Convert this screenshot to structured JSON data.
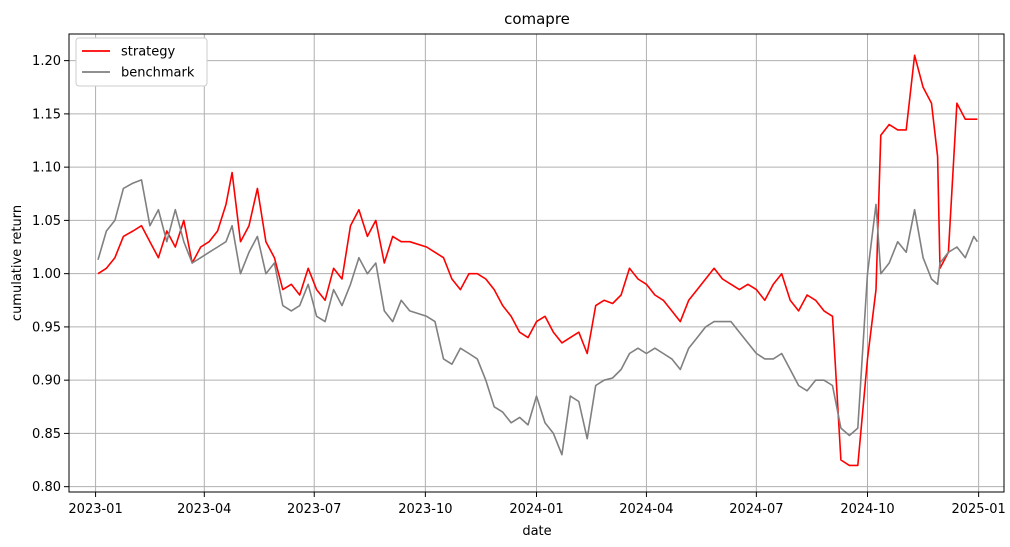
{
  "chart_data": {
    "type": "line",
    "title": "comapre",
    "xlabel": "date",
    "ylabel": "cumulative return",
    "xlim": [
      "2022-12-10",
      "2025-01-22"
    ],
    "ylim": [
      0.795,
      1.225
    ],
    "x_ticks": [
      "2023-01",
      "2023-04",
      "2023-07",
      "2023-10",
      "2024-01",
      "2024-04",
      "2024-07",
      "2024-10",
      "2025-01"
    ],
    "y_ticks": [
      "0.80",
      "0.85",
      "0.90",
      "0.95",
      "1.00",
      "1.05",
      "1.10",
      "1.15",
      "1.20"
    ],
    "grid": true,
    "legend": "top-left",
    "series": [
      {
        "name": "strategy",
        "color": "#ff0000",
        "points": [
          [
            "2023-01-03",
            1.0
          ],
          [
            "2023-01-10",
            1.005
          ],
          [
            "2023-01-17",
            1.015
          ],
          [
            "2023-01-24",
            1.035
          ],
          [
            "2023-02-01",
            1.04
          ],
          [
            "2023-02-08",
            1.045
          ],
          [
            "2023-02-15",
            1.03
          ],
          [
            "2023-02-22",
            1.015
          ],
          [
            "2023-03-01",
            1.04
          ],
          [
            "2023-03-08",
            1.025
          ],
          [
            "2023-03-15",
            1.05
          ],
          [
            "2023-03-22",
            1.01
          ],
          [
            "2023-03-29",
            1.025
          ],
          [
            "2023-04-05",
            1.03
          ],
          [
            "2023-04-12",
            1.04
          ],
          [
            "2023-04-19",
            1.065
          ],
          [
            "2023-04-24",
            1.095
          ],
          [
            "2023-05-01",
            1.03
          ],
          [
            "2023-05-08",
            1.045
          ],
          [
            "2023-05-15",
            1.08
          ],
          [
            "2023-05-22",
            1.03
          ],
          [
            "2023-05-29",
            1.015
          ],
          [
            "2023-06-05",
            0.985
          ],
          [
            "2023-06-12",
            0.99
          ],
          [
            "2023-06-19",
            0.98
          ],
          [
            "2023-06-26",
            1.005
          ],
          [
            "2023-07-03",
            0.985
          ],
          [
            "2023-07-10",
            0.975
          ],
          [
            "2023-07-17",
            1.005
          ],
          [
            "2023-07-24",
            0.995
          ],
          [
            "2023-07-31",
            1.045
          ],
          [
            "2023-08-07",
            1.06
          ],
          [
            "2023-08-14",
            1.035
          ],
          [
            "2023-08-21",
            1.05
          ],
          [
            "2023-08-28",
            1.01
          ],
          [
            "2023-09-04",
            1.035
          ],
          [
            "2023-09-11",
            1.03
          ],
          [
            "2023-09-18",
            1.03
          ],
          [
            "2023-10-02",
            1.025
          ],
          [
            "2023-10-09",
            1.02
          ],
          [
            "2023-10-16",
            1.015
          ],
          [
            "2023-10-23",
            0.995
          ],
          [
            "2023-10-30",
            0.985
          ],
          [
            "2023-11-06",
            1.0
          ],
          [
            "2023-11-13",
            1.0
          ],
          [
            "2023-11-20",
            0.995
          ],
          [
            "2023-11-27",
            0.985
          ],
          [
            "2023-12-04",
            0.97
          ],
          [
            "2023-12-11",
            0.96
          ],
          [
            "2023-12-18",
            0.945
          ],
          [
            "2023-12-25",
            0.94
          ],
          [
            "2024-01-01",
            0.955
          ],
          [
            "2024-01-08",
            0.96
          ],
          [
            "2024-01-15",
            0.945
          ],
          [
            "2024-01-22",
            0.935
          ],
          [
            "2024-01-29",
            0.94
          ],
          [
            "2024-02-05",
            0.945
          ],
          [
            "2024-02-12",
            0.925
          ],
          [
            "2024-02-19",
            0.97
          ],
          [
            "2024-02-26",
            0.975
          ],
          [
            "2024-03-04",
            0.972
          ],
          [
            "2024-03-11",
            0.98
          ],
          [
            "2024-03-18",
            1.005
          ],
          [
            "2024-03-25",
            0.995
          ],
          [
            "2024-04-01",
            0.99
          ],
          [
            "2024-04-08",
            0.98
          ],
          [
            "2024-04-15",
            0.975
          ],
          [
            "2024-04-22",
            0.965
          ],
          [
            "2024-04-29",
            0.955
          ],
          [
            "2024-05-06",
            0.975
          ],
          [
            "2024-05-13",
            0.985
          ],
          [
            "2024-05-20",
            0.995
          ],
          [
            "2024-05-27",
            1.005
          ],
          [
            "2024-06-03",
            0.995
          ],
          [
            "2024-06-10",
            0.99
          ],
          [
            "2024-06-17",
            0.985
          ],
          [
            "2024-06-24",
            0.99
          ],
          [
            "2024-07-01",
            0.985
          ],
          [
            "2024-07-08",
            0.975
          ],
          [
            "2024-07-15",
            0.99
          ],
          [
            "2024-07-22",
            1.0
          ],
          [
            "2024-07-29",
            0.975
          ],
          [
            "2024-08-05",
            0.965
          ],
          [
            "2024-08-12",
            0.98
          ],
          [
            "2024-08-19",
            0.975
          ],
          [
            "2024-08-26",
            0.965
          ],
          [
            "2024-09-02",
            0.96
          ],
          [
            "2024-09-09",
            0.825
          ],
          [
            "2024-09-16",
            0.82
          ],
          [
            "2024-09-23",
            0.82
          ],
          [
            "2024-10-01",
            0.92
          ],
          [
            "2024-10-08",
            0.985
          ],
          [
            "2024-10-12",
            1.13
          ],
          [
            "2024-10-19",
            1.14
          ],
          [
            "2024-10-26",
            1.135
          ],
          [
            "2024-11-02",
            1.135
          ],
          [
            "2024-11-09",
            1.205
          ],
          [
            "2024-11-16",
            1.175
          ],
          [
            "2024-11-23",
            1.16
          ],
          [
            "2024-11-28",
            1.11
          ],
          [
            "2024-11-30",
            1.005
          ],
          [
            "2024-12-07",
            1.02
          ],
          [
            "2024-12-14",
            1.16
          ],
          [
            "2024-12-21",
            1.145
          ],
          [
            "2024-12-28",
            1.145
          ],
          [
            "2024-12-31",
            1.145
          ]
        ]
      },
      {
        "name": "benchmark",
        "color": "#808080",
        "points": [
          [
            "2023-01-03",
            1.013
          ],
          [
            "2023-01-10",
            1.04
          ],
          [
            "2023-01-17",
            1.05
          ],
          [
            "2023-01-24",
            1.08
          ],
          [
            "2023-02-01",
            1.085
          ],
          [
            "2023-02-08",
            1.088
          ],
          [
            "2023-02-15",
            1.045
          ],
          [
            "2023-02-22",
            1.06
          ],
          [
            "2023-03-01",
            1.03
          ],
          [
            "2023-03-08",
            1.06
          ],
          [
            "2023-03-15",
            1.03
          ],
          [
            "2023-03-22",
            1.01
          ],
          [
            "2023-03-29",
            1.015
          ],
          [
            "2023-04-05",
            1.02
          ],
          [
            "2023-04-12",
            1.025
          ],
          [
            "2023-04-19",
            1.03
          ],
          [
            "2023-04-24",
            1.045
          ],
          [
            "2023-05-01",
            1.0
          ],
          [
            "2023-05-08",
            1.02
          ],
          [
            "2023-05-15",
            1.035
          ],
          [
            "2023-05-22",
            1.0
          ],
          [
            "2023-05-29",
            1.01
          ],
          [
            "2023-06-05",
            0.97
          ],
          [
            "2023-06-12",
            0.965
          ],
          [
            "2023-06-19",
            0.97
          ],
          [
            "2023-06-26",
            0.99
          ],
          [
            "2023-07-03",
            0.96
          ],
          [
            "2023-07-10",
            0.955
          ],
          [
            "2023-07-17",
            0.985
          ],
          [
            "2023-07-24",
            0.97
          ],
          [
            "2023-07-31",
            0.99
          ],
          [
            "2023-08-07",
            1.015
          ],
          [
            "2023-08-14",
            1.0
          ],
          [
            "2023-08-21",
            1.01
          ],
          [
            "2023-08-28",
            0.965
          ],
          [
            "2023-09-04",
            0.955
          ],
          [
            "2023-09-11",
            0.975
          ],
          [
            "2023-09-18",
            0.965
          ],
          [
            "2023-10-02",
            0.96
          ],
          [
            "2023-10-09",
            0.955
          ],
          [
            "2023-10-16",
            0.92
          ],
          [
            "2023-10-23",
            0.915
          ],
          [
            "2023-10-30",
            0.93
          ],
          [
            "2023-11-06",
            0.925
          ],
          [
            "2023-11-13",
            0.92
          ],
          [
            "2023-11-20",
            0.9
          ],
          [
            "2023-11-27",
            0.875
          ],
          [
            "2023-12-04",
            0.87
          ],
          [
            "2023-12-11",
            0.86
          ],
          [
            "2023-12-18",
            0.865
          ],
          [
            "2023-12-25",
            0.858
          ],
          [
            "2024-01-01",
            0.885
          ],
          [
            "2024-01-08",
            0.86
          ],
          [
            "2024-01-15",
            0.85
          ],
          [
            "2024-01-22",
            0.83
          ],
          [
            "2024-01-29",
            0.885
          ],
          [
            "2024-02-05",
            0.88
          ],
          [
            "2024-02-12",
            0.845
          ],
          [
            "2024-02-19",
            0.895
          ],
          [
            "2024-02-26",
            0.9
          ],
          [
            "2024-03-04",
            0.902
          ],
          [
            "2024-03-11",
            0.91
          ],
          [
            "2024-03-18",
            0.925
          ],
          [
            "2024-03-25",
            0.93
          ],
          [
            "2024-04-01",
            0.925
          ],
          [
            "2024-04-08",
            0.93
          ],
          [
            "2024-04-15",
            0.925
          ],
          [
            "2024-04-22",
            0.92
          ],
          [
            "2024-04-29",
            0.91
          ],
          [
            "2024-05-06",
            0.93
          ],
          [
            "2024-05-13",
            0.94
          ],
          [
            "2024-05-20",
            0.95
          ],
          [
            "2024-05-27",
            0.955
          ],
          [
            "2024-06-03",
            0.955
          ],
          [
            "2024-06-10",
            0.955
          ],
          [
            "2024-06-17",
            0.945
          ],
          [
            "2024-06-24",
            0.935
          ],
          [
            "2024-07-01",
            0.925
          ],
          [
            "2024-07-08",
            0.92
          ],
          [
            "2024-07-15",
            0.92
          ],
          [
            "2024-07-22",
            0.925
          ],
          [
            "2024-07-29",
            0.91
          ],
          [
            "2024-08-05",
            0.895
          ],
          [
            "2024-08-12",
            0.89
          ],
          [
            "2024-08-19",
            0.9
          ],
          [
            "2024-08-26",
            0.9
          ],
          [
            "2024-09-02",
            0.895
          ],
          [
            "2024-09-09",
            0.855
          ],
          [
            "2024-09-16",
            0.848
          ],
          [
            "2024-09-23",
            0.855
          ],
          [
            "2024-10-01",
            1.0
          ],
          [
            "2024-10-08",
            1.065
          ],
          [
            "2024-10-12",
            1.0
          ],
          [
            "2024-10-19",
            1.01
          ],
          [
            "2024-10-26",
            1.03
          ],
          [
            "2024-11-02",
            1.02
          ],
          [
            "2024-11-09",
            1.06
          ],
          [
            "2024-11-16",
            1.015
          ],
          [
            "2024-11-23",
            0.995
          ],
          [
            "2024-11-28",
            0.99
          ],
          [
            "2024-11-30",
            1.01
          ],
          [
            "2024-12-07",
            1.02
          ],
          [
            "2024-12-14",
            1.025
          ],
          [
            "2024-12-21",
            1.015
          ],
          [
            "2024-12-28",
            1.035
          ],
          [
            "2024-12-31",
            1.03
          ]
        ]
      }
    ]
  }
}
